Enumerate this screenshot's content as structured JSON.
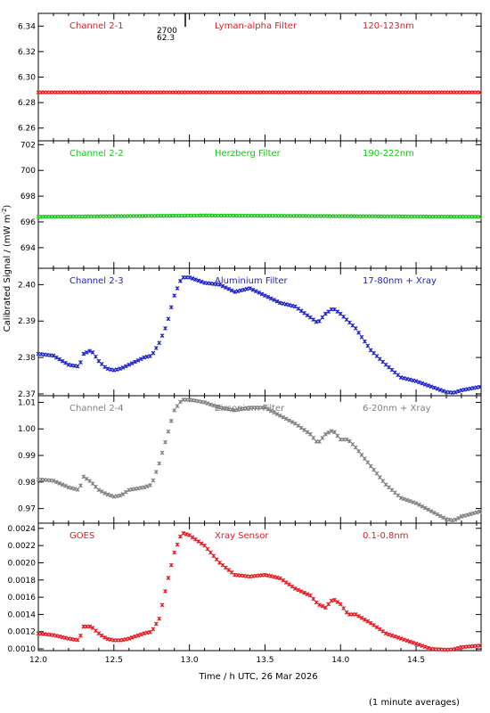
{
  "figure": {
    "ylabel": "Calibrated Signal / (mW m",
    "ylabel_sup": "-2",
    "ylabel_close": ")",
    "xlabel": "Time / h UTC, 26 Mar 2026",
    "footnote": "(1 minute averages)",
    "marker_top": "2700",
    "marker_bottom": "62.3"
  },
  "chart_data": [
    {
      "type": "scatter",
      "channel": "Channel 2-1",
      "filter": "Lyman-alpha Filter",
      "band": "120-123nm",
      "color": "#e8171f",
      "ylim": [
        6.25,
        6.35
      ],
      "yticks": [
        6.26,
        6.28,
        6.3,
        6.32,
        6.34
      ],
      "ytick_labels": [
        "6.26",
        "6.28",
        "6.30",
        "6.32",
        "6.34"
      ],
      "xlim": [
        12.0,
        14.93
      ],
      "series": [
        {
          "x": [
            12.0,
            14.93
          ],
          "values": [
            6.288,
            6.288
          ]
        }
      ]
    },
    {
      "type": "scatter",
      "channel": "Channel 2-2",
      "filter": "Herzberg Filter",
      "band": "190-222nm",
      "color": "#16c716",
      "ylim": [
        692.4,
        702.3
      ],
      "yticks": [
        694,
        696,
        698,
        700,
        702
      ],
      "ytick_labels": [
        "694",
        "696",
        "698",
        "700",
        "702"
      ],
      "xlim": [
        12.0,
        14.93
      ],
      "series": [
        {
          "x": [
            12.0,
            13.1,
            14.93
          ],
          "values": [
            696.4,
            696.5,
            696.4
          ]
        }
      ]
    },
    {
      "type": "scatter",
      "channel": "Channel 2-3",
      "filter": "Aluminium Filter",
      "band": "17-80nm + Xray",
      "color": "#1c22c9",
      "ylim": [
        2.3695,
        2.4045
      ],
      "yticks": [
        2.37,
        2.38,
        2.39,
        2.4
      ],
      "ytick_labels": [
        "2.37",
        "2.38",
        "2.39",
        "2.40"
      ],
      "xlim": [
        12.0,
        14.93
      ],
      "series": [
        {
          "x": [
            12.0,
            12.1,
            12.2,
            12.27,
            12.3,
            12.35,
            12.4,
            12.45,
            12.5,
            12.55,
            12.6,
            12.7,
            12.75,
            12.8,
            12.85,
            12.9,
            12.95,
            13.0,
            13.1,
            13.2,
            13.3,
            13.4,
            13.5,
            13.6,
            13.7,
            13.8,
            13.85,
            13.9,
            13.95,
            14.0,
            14.05,
            14.1,
            14.2,
            14.3,
            14.4,
            14.5,
            14.6,
            14.7,
            14.75,
            14.8,
            14.93
          ],
          "values": [
            2.381,
            2.3805,
            2.378,
            2.3775,
            2.381,
            2.382,
            2.379,
            2.377,
            2.3765,
            2.377,
            2.378,
            2.38,
            2.3805,
            2.384,
            2.389,
            2.397,
            2.402,
            2.402,
            2.4005,
            2.4,
            2.398,
            2.399,
            2.397,
            2.395,
            2.394,
            2.391,
            2.3895,
            2.392,
            2.3935,
            2.392,
            2.39,
            2.388,
            2.382,
            2.378,
            2.3745,
            2.3735,
            2.372,
            2.3705,
            2.3703,
            2.371,
            2.372
          ]
        }
      ]
    },
    {
      "type": "scatter",
      "channel": "Channel 2-4",
      "filter": "Zirconium Filter",
      "band": "6-20nm + Xray",
      "color": "#7f7f7f",
      "ylim": [
        0.9645,
        1.0125
      ],
      "yticks": [
        0.97,
        0.98,
        0.99,
        1.0,
        1.01
      ],
      "ytick_labels": [
        "0.97",
        "0.98",
        "0.99",
        "1.00",
        "1.01"
      ],
      "xlim": [
        12.0,
        14.93
      ],
      "series": [
        {
          "x": [
            12.0,
            12.1,
            12.2,
            12.27,
            12.3,
            12.35,
            12.4,
            12.45,
            12.5,
            12.55,
            12.6,
            12.7,
            12.75,
            12.8,
            12.85,
            12.9,
            12.95,
            13.0,
            13.1,
            13.2,
            13.3,
            13.4,
            13.5,
            13.6,
            13.7,
            13.8,
            13.85,
            13.9,
            13.95,
            14.0,
            14.05,
            14.1,
            14.2,
            14.3,
            14.4,
            14.5,
            14.6,
            14.7,
            14.75,
            14.8,
            14.93
          ],
          "values": [
            0.981,
            0.9805,
            0.978,
            0.977,
            0.982,
            0.98,
            0.977,
            0.9755,
            0.9745,
            0.975,
            0.977,
            0.978,
            0.979,
            0.987,
            0.997,
            1.007,
            1.011,
            1.011,
            1.01,
            1.008,
            1.007,
            1.008,
            1.008,
            1.005,
            1.002,
            0.998,
            0.9945,
            0.998,
            0.9995,
            0.996,
            0.996,
            0.993,
            0.986,
            0.979,
            0.974,
            0.972,
            0.969,
            0.966,
            0.9655,
            0.967,
            0.969
          ]
        }
      ]
    },
    {
      "type": "scatter",
      "channel": "GOES",
      "filter": "Xray Sensor",
      "band": "0.1-0.8nm",
      "color": "#e8171f",
      "ylim": [
        0.00098,
        0.00246
      ],
      "yticks": [
        0.001,
        0.0012,
        0.0014,
        0.0016,
        0.0018,
        0.002,
        0.0022,
        0.0024
      ],
      "ytick_labels": [
        "0.0010",
        "0.0012",
        "0.0014",
        "0.0016",
        "0.0018",
        "0.0020",
        "0.0022",
        "0.0024"
      ],
      "xlim": [
        12.0,
        14.93
      ],
      "xticks": [
        12.0,
        12.5,
        13.0,
        13.5,
        14.0,
        14.5
      ],
      "xtick_labels": [
        "12.0",
        "12.5",
        "13.0",
        "13.5",
        "14.0",
        "14.5"
      ],
      "series": [
        {
          "x": [
            12.0,
            12.1,
            12.2,
            12.27,
            12.3,
            12.35,
            12.4,
            12.45,
            12.5,
            12.55,
            12.6,
            12.7,
            12.75,
            12.8,
            12.85,
            12.9,
            12.95,
            13.0,
            13.1,
            13.2,
            13.3,
            13.4,
            13.5,
            13.6,
            13.7,
            13.8,
            13.85,
            13.9,
            13.95,
            14.0,
            14.05,
            14.1,
            14.2,
            14.3,
            14.4,
            14.5,
            14.6,
            14.7,
            14.75,
            14.8,
            14.93
          ],
          "values": [
            0.00118,
            0.00116,
            0.00112,
            0.0011,
            0.00126,
            0.00126,
            0.00118,
            0.00112,
            0.0011,
            0.0011,
            0.00112,
            0.00118,
            0.0012,
            0.00135,
            0.00175,
            0.00212,
            0.00235,
            0.00232,
            0.0022,
            0.002,
            0.00186,
            0.00184,
            0.00186,
            0.00182,
            0.0017,
            0.00162,
            0.00152,
            0.00148,
            0.00158,
            0.00152,
            0.0014,
            0.0014,
            0.0013,
            0.00118,
            0.00112,
            0.00106,
            0.001,
            0.00099,
            0.000995,
            0.00102,
            0.00104
          ]
        }
      ]
    }
  ]
}
